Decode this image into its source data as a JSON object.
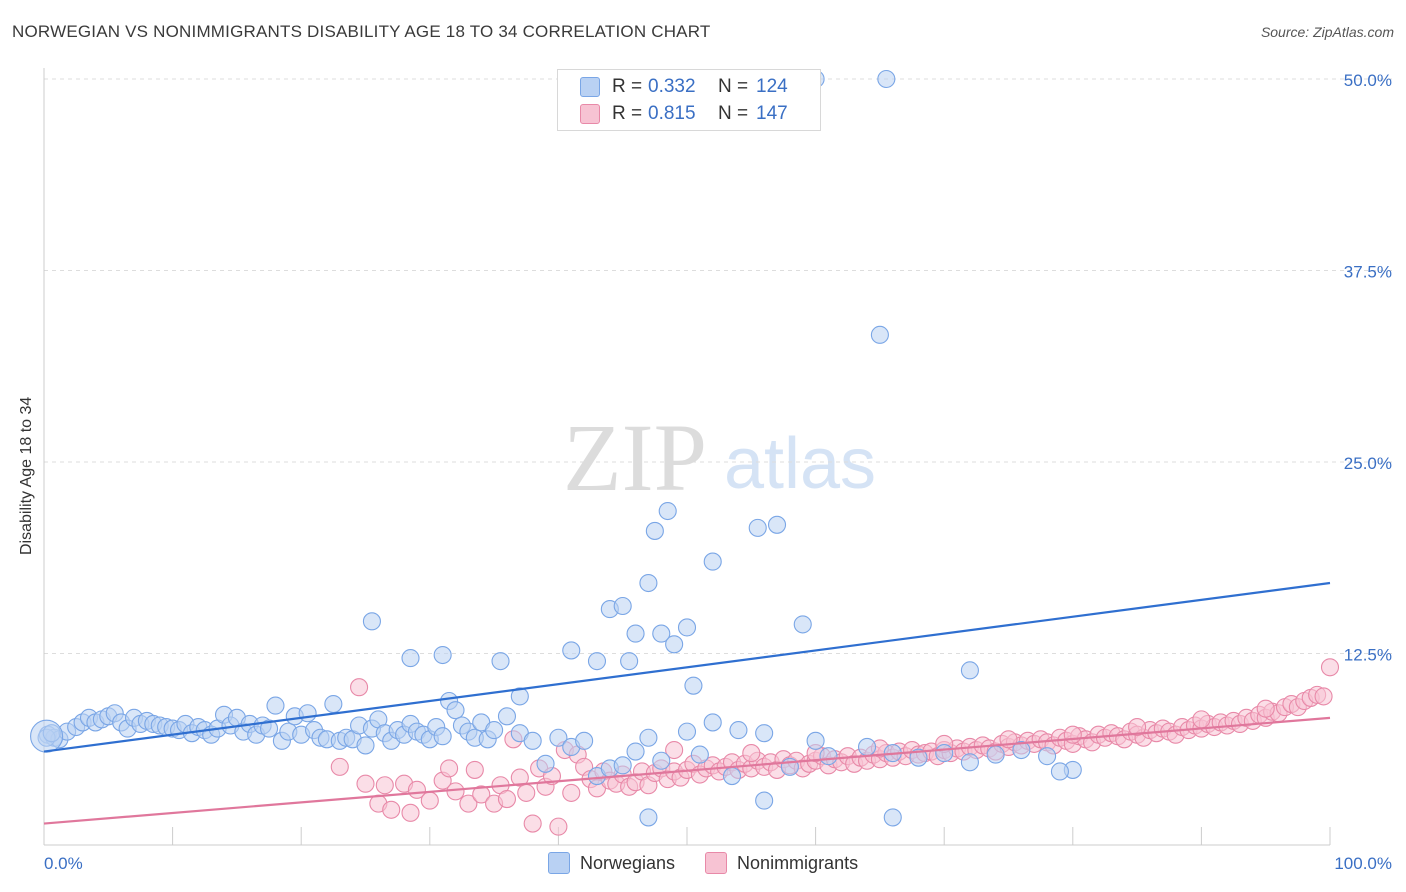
{
  "title": "NORWEGIAN VS NONIMMIGRANTS DISABILITY AGE 18 TO 34 CORRELATION CHART",
  "source": "Source: ZipAtlas.com",
  "watermark": {
    "part1": "ZIP",
    "part2": "atlas"
  },
  "legend": {
    "r_label": "R =",
    "n_label": "N =",
    "items": [
      {
        "name": "Norwegians",
        "r": "0.332",
        "n": "124",
        "color": "#7aa6e6",
        "fill": "#b9d1f3"
      },
      {
        "name": "Nonimmigrants",
        "r": "0.815",
        "n": "147",
        "color": "#e889a8",
        "fill": "#f7c3d3"
      }
    ]
  },
  "chart_data": {
    "type": "scatter",
    "ylabel": "Disability Age 18 to 34",
    "xlim": [
      0,
      100
    ],
    "ylim": [
      0,
      50
    ],
    "x_tick_labels": [
      "0.0%",
      "100.0%"
    ],
    "y_ticks": [
      {
        "value": 12.5,
        "label": "12.5%"
      },
      {
        "value": 25.0,
        "label": "25.0%"
      },
      {
        "value": 37.5,
        "label": "37.5%"
      },
      {
        "value": 50.0,
        "label": "50.0%"
      }
    ],
    "grid": true,
    "legend_position": "top-center",
    "series": [
      {
        "name": "Norwegians",
        "color": "#7aa6e6",
        "fill": "#b9d1f3",
        "trend": {
          "start": [
            0,
            6.1
          ],
          "end": [
            100,
            17.1
          ],
          "color": "#2f6fd0"
        },
        "points": [
          [
            0.3,
            7.2
          ],
          [
            0.8,
            7.0
          ],
          [
            1.2,
            6.9
          ],
          [
            1.8,
            7.4
          ],
          [
            2.5,
            7.7
          ],
          [
            3.0,
            8.0
          ],
          [
            3.5,
            8.3
          ],
          [
            4.0,
            8.0
          ],
          [
            4.5,
            8.2
          ],
          [
            5.0,
            8.4
          ],
          [
            5.5,
            8.6
          ],
          [
            6.0,
            8.0
          ],
          [
            6.5,
            7.6
          ],
          [
            7.0,
            8.3
          ],
          [
            7.5,
            7.9
          ],
          [
            8.0,
            8.1
          ],
          [
            8.5,
            7.9
          ],
          [
            9.0,
            7.8
          ],
          [
            9.5,
            7.7
          ],
          [
            10.0,
            7.6
          ],
          [
            10.5,
            7.5
          ],
          [
            11.0,
            7.9
          ],
          [
            11.5,
            7.3
          ],
          [
            12.0,
            7.7
          ],
          [
            12.5,
            7.5
          ],
          [
            13.0,
            7.2
          ],
          [
            13.5,
            7.6
          ],
          [
            14.0,
            8.5
          ],
          [
            14.5,
            7.8
          ],
          [
            15.0,
            8.3
          ],
          [
            15.5,
            7.4
          ],
          [
            16.0,
            7.9
          ],
          [
            16.5,
            7.2
          ],
          [
            17.0,
            7.8
          ],
          [
            17.5,
            7.6
          ],
          [
            18.0,
            9.1
          ],
          [
            18.5,
            6.8
          ],
          [
            19.0,
            7.4
          ],
          [
            19.5,
            8.4
          ],
          [
            20.0,
            7.2
          ],
          [
            20.5,
            8.6
          ],
          [
            21.0,
            7.5
          ],
          [
            21.5,
            7.0
          ],
          [
            22.0,
            6.9
          ],
          [
            22.5,
            9.2
          ],
          [
            23.0,
            6.8
          ],
          [
            23.5,
            7.0
          ],
          [
            24.0,
            6.9
          ],
          [
            24.5,
            7.8
          ],
          [
            25.0,
            6.5
          ],
          [
            25.5,
            7.6
          ],
          [
            26.0,
            8.2
          ],
          [
            26.5,
            7.3
          ],
          [
            27.0,
            6.8
          ],
          [
            27.5,
            7.5
          ],
          [
            28.0,
            7.2
          ],
          [
            28.5,
            7.9
          ],
          [
            29.0,
            7.4
          ],
          [
            29.5,
            7.2
          ],
          [
            30.0,
            6.9
          ],
          [
            30.5,
            7.7
          ],
          [
            31.0,
            7.1
          ],
          [
            31.5,
            9.4
          ],
          [
            32.0,
            8.8
          ],
          [
            32.5,
            7.8
          ],
          [
            33.0,
            7.4
          ],
          [
            33.5,
            7.0
          ],
          [
            34.0,
            8.0
          ],
          [
            34.5,
            6.9
          ],
          [
            35.0,
            7.5
          ],
          [
            36.0,
            8.4
          ],
          [
            37.0,
            7.3
          ],
          [
            38.0,
            6.8
          ],
          [
            39.0,
            5.3
          ],
          [
            40.0,
            7.0
          ],
          [
            41.0,
            6.4
          ],
          [
            42.0,
            6.8
          ],
          [
            43.0,
            4.5
          ],
          [
            44.0,
            5.0
          ],
          [
            45.0,
            5.2
          ],
          [
            46.0,
            6.1
          ],
          [
            47.0,
            7.0
          ],
          [
            48.0,
            5.5
          ],
          [
            50.0,
            7.4
          ],
          [
            52.0,
            8.0
          ],
          [
            54.0,
            7.5
          ],
          [
            56.0,
            7.3
          ],
          [
            58.0,
            5.1
          ],
          [
            60.0,
            6.8
          ],
          [
            64.0,
            6.4
          ],
          [
            66.0,
            6.0
          ],
          [
            68.0,
            5.7
          ],
          [
            70.0,
            6.0
          ],
          [
            72.0,
            5.4
          ],
          [
            74.0,
            5.9
          ],
          [
            76.0,
            6.2
          ],
          [
            78.0,
            5.8
          ],
          [
            80.0,
            4.9
          ],
          [
            0.2,
            7.0
          ],
          [
            0.6,
            7.3
          ],
          [
            25.5,
            14.6
          ],
          [
            28.5,
            12.2
          ],
          [
            31.0,
            12.4
          ],
          [
            35.5,
            12.0
          ],
          [
            37.0,
            9.7
          ],
          [
            41.0,
            12.7
          ],
          [
            43.0,
            12.0
          ],
          [
            44.0,
            15.4
          ],
          [
            45.0,
            15.6
          ],
          [
            45.5,
            12.0
          ],
          [
            46.0,
            13.8
          ],
          [
            47.0,
            17.1
          ],
          [
            48.0,
            13.8
          ],
          [
            49.0,
            13.1
          ],
          [
            50.5,
            10.4
          ],
          [
            50.0,
            14.2
          ],
          [
            52.0,
            18.5
          ],
          [
            53.5,
            4.5
          ],
          [
            56.0,
            2.9
          ],
          [
            59.0,
            14.4
          ],
          [
            61.0,
            5.8
          ],
          [
            65.0,
            33.3
          ],
          [
            66.0,
            1.8
          ],
          [
            72.0,
            11.4
          ],
          [
            55.5,
            20.7
          ],
          [
            57.0,
            20.9
          ],
          [
            47.5,
            20.5
          ],
          [
            48.5,
            21.8
          ],
          [
            60.0,
            50.0
          ],
          [
            65.5,
            50.0
          ],
          [
            56.0,
            50.0
          ],
          [
            47.0,
            1.8
          ],
          [
            51.0,
            5.9
          ],
          [
            79.0,
            4.8
          ]
        ]
      },
      {
        "name": "Nonimmigrants",
        "color": "#e889a8",
        "fill": "#f7c3d3",
        "trend": {
          "start": [
            0,
            1.4
          ],
          "end": [
            100,
            8.3
          ],
          "color": "#e0779c"
        },
        "points": [
          [
            23.0,
            5.1
          ],
          [
            24.5,
            10.3
          ],
          [
            25.0,
            4.0
          ],
          [
            26.0,
            2.7
          ],
          [
            26.5,
            3.9
          ],
          [
            27.0,
            2.3
          ],
          [
            28.0,
            4.0
          ],
          [
            28.5,
            2.1
          ],
          [
            29.0,
            3.6
          ],
          [
            30.0,
            2.9
          ],
          [
            31.0,
            4.2
          ],
          [
            31.5,
            5.0
          ],
          [
            32.0,
            3.5
          ],
          [
            33.0,
            2.7
          ],
          [
            33.5,
            4.9
          ],
          [
            34.0,
            3.3
          ],
          [
            35.0,
            2.7
          ],
          [
            35.5,
            3.9
          ],
          [
            36.0,
            3.0
          ],
          [
            36.5,
            6.9
          ],
          [
            37.0,
            4.4
          ],
          [
            37.5,
            3.4
          ],
          [
            38.0,
            1.4
          ],
          [
            38.5,
            5.0
          ],
          [
            39.0,
            3.8
          ],
          [
            39.5,
            4.5
          ],
          [
            40.0,
            1.2
          ],
          [
            40.5,
            6.2
          ],
          [
            41.0,
            3.4
          ],
          [
            41.5,
            5.9
          ],
          [
            42.0,
            5.1
          ],
          [
            42.5,
            4.3
          ],
          [
            43.0,
            3.7
          ],
          [
            43.5,
            4.8
          ],
          [
            44.0,
            4.2
          ],
          [
            44.5,
            4.0
          ],
          [
            45.0,
            4.6
          ],
          [
            45.5,
            3.8
          ],
          [
            46.0,
            4.1
          ],
          [
            46.5,
            4.8
          ],
          [
            47.0,
            3.9
          ],
          [
            47.5,
            4.7
          ],
          [
            48.0,
            5.0
          ],
          [
            48.5,
            4.3
          ],
          [
            49.0,
            4.8
          ],
          [
            49.5,
            4.4
          ],
          [
            50.0,
            4.9
          ],
          [
            50.5,
            5.3
          ],
          [
            51.0,
            4.6
          ],
          [
            51.5,
            5.0
          ],
          [
            52.0,
            5.2
          ],
          [
            52.5,
            4.8
          ],
          [
            53.0,
            5.1
          ],
          [
            53.5,
            5.4
          ],
          [
            54.0,
            4.9
          ],
          [
            54.5,
            5.3
          ],
          [
            55.0,
            5.0
          ],
          [
            55.5,
            5.5
          ],
          [
            56.0,
            5.1
          ],
          [
            56.5,
            5.4
          ],
          [
            57.0,
            4.9
          ],
          [
            57.5,
            5.6
          ],
          [
            58.0,
            5.2
          ],
          [
            58.5,
            5.5
          ],
          [
            59.0,
            5.0
          ],
          [
            59.5,
            5.3
          ],
          [
            60.0,
            5.5
          ],
          [
            60.5,
            5.8
          ],
          [
            61.0,
            5.2
          ],
          [
            61.5,
            5.6
          ],
          [
            62.0,
            5.4
          ],
          [
            62.5,
            5.8
          ],
          [
            63.0,
            5.3
          ],
          [
            63.5,
            5.7
          ],
          [
            64.0,
            5.5
          ],
          [
            64.5,
            5.9
          ],
          [
            65.0,
            5.6
          ],
          [
            65.5,
            6.0
          ],
          [
            66.0,
            5.7
          ],
          [
            66.5,
            6.1
          ],
          [
            67.0,
            5.8
          ],
          [
            67.5,
            6.2
          ],
          [
            68.0,
            5.9
          ],
          [
            68.5,
            6.0
          ],
          [
            69.0,
            6.1
          ],
          [
            69.5,
            5.8
          ],
          [
            70.0,
            6.2
          ],
          [
            70.5,
            6.0
          ],
          [
            71.0,
            6.3
          ],
          [
            71.5,
            6.1
          ],
          [
            72.0,
            6.4
          ],
          [
            72.5,
            6.2
          ],
          [
            73.0,
            6.5
          ],
          [
            73.5,
            6.3
          ],
          [
            74.0,
            6.1
          ],
          [
            74.5,
            6.6
          ],
          [
            75.0,
            6.4
          ],
          [
            75.5,
            6.7
          ],
          [
            76.0,
            6.5
          ],
          [
            76.5,
            6.8
          ],
          [
            77.0,
            6.6
          ],
          [
            77.5,
            6.9
          ],
          [
            78.0,
            6.7
          ],
          [
            78.5,
            6.5
          ],
          [
            79.0,
            7.0
          ],
          [
            79.5,
            6.8
          ],
          [
            80.0,
            6.6
          ],
          [
            80.5,
            7.1
          ],
          [
            81.0,
            6.9
          ],
          [
            81.5,
            6.7
          ],
          [
            82.0,
            7.2
          ],
          [
            82.5,
            7.0
          ],
          [
            83.0,
            7.3
          ],
          [
            83.5,
            7.1
          ],
          [
            84.0,
            6.9
          ],
          [
            84.5,
            7.4
          ],
          [
            85.0,
            7.2
          ],
          [
            85.5,
            7.0
          ],
          [
            86.0,
            7.5
          ],
          [
            86.5,
            7.3
          ],
          [
            87.0,
            7.6
          ],
          [
            87.5,
            7.4
          ],
          [
            88.0,
            7.2
          ],
          [
            88.5,
            7.7
          ],
          [
            89.0,
            7.5
          ],
          [
            89.5,
            7.8
          ],
          [
            90.0,
            7.6
          ],
          [
            90.5,
            7.9
          ],
          [
            91.0,
            7.7
          ],
          [
            91.5,
            8.0
          ],
          [
            92.0,
            7.8
          ],
          [
            92.5,
            8.1
          ],
          [
            93.0,
            7.9
          ],
          [
            93.5,
            8.3
          ],
          [
            94.0,
            8.1
          ],
          [
            94.5,
            8.5
          ],
          [
            95.0,
            8.3
          ],
          [
            95.5,
            8.7
          ],
          [
            96.0,
            8.6
          ],
          [
            96.5,
            9.0
          ],
          [
            97.0,
            9.2
          ],
          [
            97.5,
            9.0
          ],
          [
            98.0,
            9.4
          ],
          [
            98.5,
            9.6
          ],
          [
            99.0,
            9.8
          ],
          [
            99.5,
            9.7
          ],
          [
            100.0,
            11.6
          ],
          [
            49.0,
            6.2
          ],
          [
            55.0,
            6.0
          ],
          [
            60.0,
            6.0
          ],
          [
            65.0,
            6.3
          ],
          [
            70.0,
            6.6
          ],
          [
            75.0,
            6.9
          ],
          [
            80.0,
            7.2
          ],
          [
            85.0,
            7.7
          ],
          [
            90.0,
            8.2
          ],
          [
            95.0,
            8.9
          ]
        ]
      }
    ]
  }
}
